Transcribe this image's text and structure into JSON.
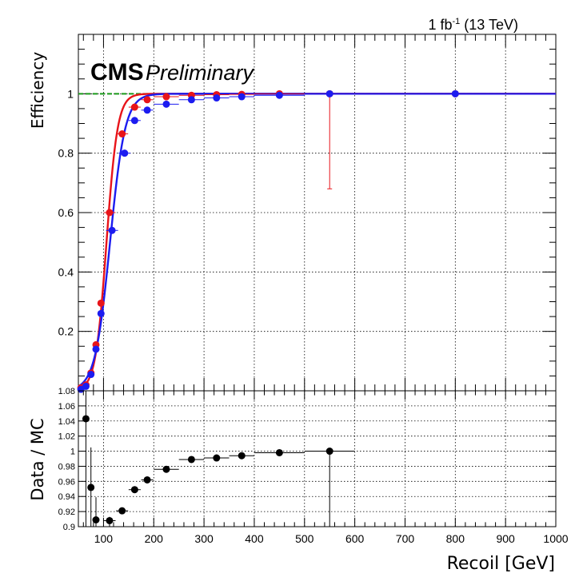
{
  "header": {
    "lumi_prefix": "1 fb",
    "lumi_exp": "-1",
    "lumi_suffix": " (13 TeV)",
    "experiment": "CMS",
    "status": "Preliminary"
  },
  "chart_data": [
    {
      "type": "scatter",
      "panel": "efficiency",
      "ylabel": "Efficiency",
      "xlim": [
        50,
        1000
      ],
      "ylim": [
        0,
        1.2
      ],
      "yticks": [
        0.2,
        0.4,
        0.6,
        0.8,
        1.0
      ],
      "ytick_labels": [
        "0.2",
        "0.4",
        "0.6",
        "0.8",
        "1"
      ],
      "grid": true,
      "reference_line": {
        "y": 1.0,
        "style": "dashed",
        "color": "#1a9a1a"
      },
      "series": [
        {
          "color": "#e8141a",
          "points": [
            {
              "x": 55,
              "y": 0.01,
              "xerr": 5,
              "yerr": 0
            },
            {
              "x": 65,
              "y": 0.02,
              "xerr": 5,
              "yerr": 0
            },
            {
              "x": 75,
              "y": 0.06,
              "xerr": 5,
              "yerr": 0.01
            },
            {
              "x": 85,
              "y": 0.155,
              "xerr": 5,
              "yerr": 0.01
            },
            {
              "x": 95,
              "y": 0.295,
              "xerr": 5,
              "yerr": 0.01
            },
            {
              "x": 112,
              "y": 0.6,
              "xerr": 12,
              "yerr": 0.01
            },
            {
              "x": 137,
              "y": 0.865,
              "xerr": 12,
              "yerr": 0.01
            },
            {
              "x": 162,
              "y": 0.955,
              "xerr": 12,
              "yerr": 0.01
            },
            {
              "x": 187,
              "y": 0.98,
              "xerr": 12,
              "yerr": 0.005
            },
            {
              "x": 225,
              "y": 0.99,
              "xerr": 25,
              "yerr": 0.005
            },
            {
              "x": 275,
              "y": 0.995,
              "xerr": 25,
              "yerr": 0.003
            },
            {
              "x": 325,
              "y": 0.997,
              "xerr": 25,
              "yerr": 0.003
            },
            {
              "x": 375,
              "y": 0.998,
              "xerr": 25,
              "yerr": 0.003
            },
            {
              "x": 450,
              "y": 1.0,
              "xerr": 50,
              "yerr": 0.003
            },
            {
              "x": 550,
              "y": 1.0,
              "xerr": 50,
              "yerr_low": 0.32,
              "yerr_high": 0
            },
            {
              "x": 800,
              "y": 1.0,
              "xerr": 200,
              "yerr": 0
            }
          ],
          "fit": {
            "plateau": 1.0,
            "midpoint": 106,
            "width": 11
          }
        },
        {
          "color": "#1c1cf0",
          "points": [
            {
              "x": 55,
              "y": 0.005,
              "xerr": 5,
              "yerr": 0
            },
            {
              "x": 65,
              "y": 0.015,
              "xerr": 5,
              "yerr": 0
            },
            {
              "x": 75,
              "y": 0.055,
              "xerr": 5,
              "yerr": 0.01
            },
            {
              "x": 85,
              "y": 0.14,
              "xerr": 5,
              "yerr": 0.01
            },
            {
              "x": 95,
              "y": 0.26,
              "xerr": 5,
              "yerr": 0.01
            },
            {
              "x": 117,
              "y": 0.54,
              "xerr": 12,
              "yerr": 0.01
            },
            {
              "x": 142,
              "y": 0.8,
              "xerr": 12,
              "yerr": 0.01
            },
            {
              "x": 162,
              "y": 0.91,
              "xerr": 12,
              "yerr": 0.01
            },
            {
              "x": 187,
              "y": 0.945,
              "xerr": 12,
              "yerr": 0.005
            },
            {
              "x": 225,
              "y": 0.965,
              "xerr": 25,
              "yerr": 0.005
            },
            {
              "x": 275,
              "y": 0.98,
              "xerr": 25,
              "yerr": 0.003
            },
            {
              "x": 325,
              "y": 0.986,
              "xerr": 25,
              "yerr": 0.003
            },
            {
              "x": 375,
              "y": 0.99,
              "xerr": 25,
              "yerr": 0.003
            },
            {
              "x": 450,
              "y": 0.995,
              "xerr": 50,
              "yerr": 0.003
            },
            {
              "x": 550,
              "y": 1.0,
              "xerr": 50,
              "yerr": 0
            },
            {
              "x": 800,
              "y": 1.0,
              "xerr": 200,
              "yerr": 0
            }
          ],
          "fit": {
            "plateau": 1.0,
            "midpoint": 113,
            "width": 15
          }
        }
      ]
    },
    {
      "type": "scatter",
      "panel": "ratio",
      "ylabel": "Data / MC",
      "xlabel": "Recoil [GeV]",
      "xlim": [
        50,
        1000
      ],
      "ylim": [
        0.9,
        1.08
      ],
      "xticks": [
        100,
        200,
        300,
        400,
        500,
        600,
        700,
        800,
        900,
        1000
      ],
      "xtick_labels": [
        "100",
        "200",
        "300",
        "400",
        "500",
        "600",
        "700",
        "800",
        "900",
        "1000"
      ],
      "yticks": [
        0.9,
        0.92,
        0.94,
        0.96,
        0.98,
        1.0,
        1.02,
        1.04,
        1.06,
        1.08
      ],
      "ytick_labels": [
        "0.9",
        "0.92",
        "0.94",
        "0.96",
        "0.98",
        "1",
        "1.02",
        "1.04",
        "1.06",
        "1.08"
      ],
      "grid": true,
      "series": [
        {
          "color": "#000000",
          "points": [
            {
              "x": 65,
              "y": 1.043,
              "xerr": 5,
              "yerr_low": 0.143,
              "yerr_high": 0.04
            },
            {
              "x": 75,
              "y": 0.952,
              "xerr": 5,
              "yerr_low": 0.052,
              "yerr_high": 0.053
            },
            {
              "x": 85,
              "y": 0.909,
              "xerr": 5,
              "yerr_low": 0.009,
              "yerr_high": 0.03
            },
            {
              "x": 112,
              "y": 0.908,
              "xerr": 12,
              "yerr_low": 0.008,
              "yerr_high": 0.005
            },
            {
              "x": 137,
              "y": 0.921,
              "xerr": 12,
              "yerr": 0.003
            },
            {
              "x": 162,
              "y": 0.949,
              "xerr": 12,
              "yerr": 0.003
            },
            {
              "x": 187,
              "y": 0.962,
              "xerr": 12,
              "yerr": 0.002
            },
            {
              "x": 225,
              "y": 0.976,
              "xerr": 25,
              "yerr": 0.002
            },
            {
              "x": 275,
              "y": 0.989,
              "xerr": 25,
              "yerr": 0.002
            },
            {
              "x": 325,
              "y": 0.991,
              "xerr": 25,
              "yerr": 0.002
            },
            {
              "x": 375,
              "y": 0.994,
              "xerr": 25,
              "yerr": 0.002
            },
            {
              "x": 450,
              "y": 0.998,
              "xerr": 50,
              "yerr": 0.002
            },
            {
              "x": 550,
              "y": 1.0,
              "xerr": 50,
              "yerr_low": 0.1,
              "yerr_high": 0
            }
          ]
        }
      ]
    }
  ]
}
